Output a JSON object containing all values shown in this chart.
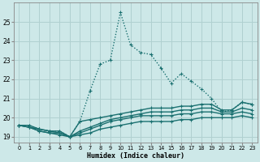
{
  "xlabel": "Humidex (Indice chaleur)",
  "xlim": [
    -0.5,
    23.5
  ],
  "ylim": [
    18.7,
    26.0
  ],
  "yticks": [
    19,
    20,
    21,
    22,
    23,
    24,
    25
  ],
  "xticks": [
    0,
    1,
    2,
    3,
    4,
    5,
    6,
    7,
    8,
    9,
    10,
    11,
    12,
    13,
    14,
    15,
    16,
    17,
    18,
    19,
    20,
    21,
    22,
    23
  ],
  "bg_color": "#cde8e8",
  "grid_color": "#b0d0d0",
  "line_color": "#1a7070",
  "lines": [
    {
      "x": [
        0,
        1,
        2,
        3,
        4,
        5,
        6,
        7,
        8,
        9,
        10,
        11,
        12,
        13,
        14,
        15,
        16,
        17,
        18,
        19,
        20,
        21,
        22,
        23
      ],
      "y": [
        19.6,
        19.6,
        19.4,
        19.3,
        19.3,
        19.0,
        19.8,
        21.4,
        22.8,
        23.0,
        25.5,
        23.8,
        23.4,
        23.3,
        22.6,
        21.8,
        22.3,
        21.9,
        21.5,
        21.0,
        20.3,
        20.4,
        20.8,
        20.7
      ],
      "style": "dotted"
    },
    {
      "x": [
        0,
        1,
        2,
        3,
        4,
        5,
        6,
        7,
        8,
        9,
        10,
        11,
        12,
        13,
        14,
        15,
        16,
        17,
        18,
        19,
        20,
        21,
        22,
        23
      ],
      "y": [
        19.6,
        19.6,
        19.4,
        19.3,
        19.3,
        19.0,
        19.8,
        19.9,
        20.0,
        20.1,
        20.2,
        20.3,
        20.4,
        20.5,
        20.5,
        20.5,
        20.6,
        20.6,
        20.7,
        20.7,
        20.4,
        20.4,
        20.8,
        20.7
      ],
      "style": "solid"
    },
    {
      "x": [
        0,
        1,
        2,
        3,
        4,
        5,
        6,
        7,
        8,
        9,
        10,
        11,
        12,
        13,
        14,
        15,
        16,
        17,
        18,
        19,
        20,
        21,
        22,
        23
      ],
      "y": [
        19.6,
        19.5,
        19.4,
        19.3,
        19.2,
        19.0,
        19.3,
        19.5,
        19.7,
        19.9,
        20.0,
        20.1,
        20.2,
        20.3,
        20.3,
        20.3,
        20.4,
        20.4,
        20.5,
        20.5,
        20.3,
        20.3,
        20.5,
        20.4
      ],
      "style": "solid"
    },
    {
      "x": [
        0,
        1,
        2,
        3,
        4,
        5,
        6,
        7,
        8,
        9,
        10,
        11,
        12,
        13,
        14,
        15,
        16,
        17,
        18,
        19,
        20,
        21,
        22,
        23
      ],
      "y": [
        19.6,
        19.5,
        19.3,
        19.2,
        19.2,
        19.0,
        19.2,
        19.4,
        19.6,
        19.8,
        19.9,
        20.0,
        20.1,
        20.1,
        20.1,
        20.1,
        20.2,
        20.2,
        20.3,
        20.3,
        20.2,
        20.2,
        20.3,
        20.2
      ],
      "style": "solid"
    },
    {
      "x": [
        0,
        1,
        2,
        3,
        4,
        5,
        6,
        7,
        8,
        9,
        10,
        11,
        12,
        13,
        14,
        15,
        16,
        17,
        18,
        19,
        20,
        21,
        22,
        23
      ],
      "y": [
        19.6,
        19.5,
        19.3,
        19.2,
        19.1,
        19.0,
        19.1,
        19.2,
        19.4,
        19.5,
        19.6,
        19.7,
        19.8,
        19.8,
        19.8,
        19.8,
        19.9,
        19.9,
        20.0,
        20.0,
        20.0,
        20.0,
        20.1,
        20.0
      ],
      "style": "solid"
    }
  ]
}
